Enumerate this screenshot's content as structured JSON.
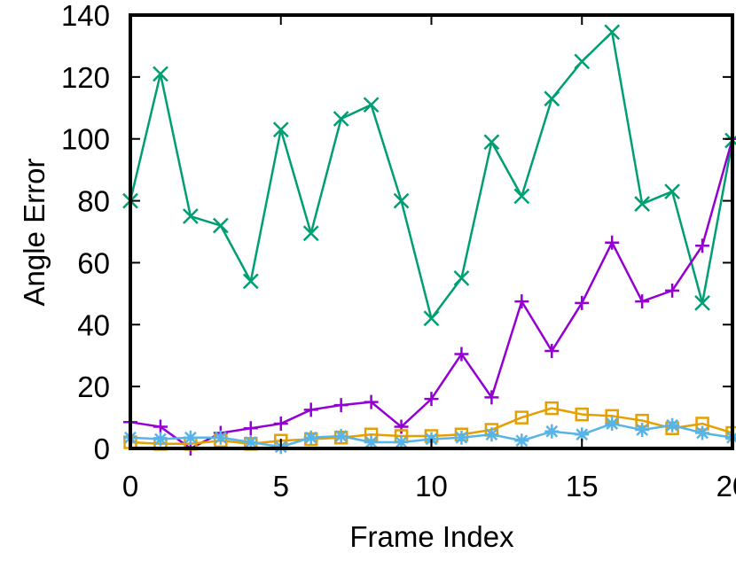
{
  "chart_data": {
    "type": "line",
    "title": "",
    "xlabel": "Frame Index",
    "ylabel": "Angle Error",
    "xlim": [
      0,
      20
    ],
    "ylim": [
      0,
      140
    ],
    "xticks": [
      0,
      5,
      10,
      15,
      20
    ],
    "yticks": [
      0,
      20,
      40,
      60,
      80,
      100,
      120,
      140
    ],
    "grid": false,
    "legend": "none",
    "x": [
      0,
      1,
      2,
      3,
      4,
      5,
      6,
      7,
      8,
      9,
      10,
      11,
      12,
      13,
      14,
      15,
      16,
      17,
      18,
      19,
      20
    ],
    "series": [
      {
        "color": "#009e73",
        "marker": "x",
        "values": [
          80,
          121,
          75,
          72,
          54,
          103,
          69.5,
          106.5,
          111,
          80,
          42,
          55,
          99,
          81.5,
          113,
          125,
          134.5,
          79,
          83,
          47,
          99.5
        ]
      },
      {
        "color": "#9400d3",
        "marker": "plus",
        "values": [
          8.5,
          7,
          0,
          5,
          6.5,
          8,
          12.5,
          14,
          15,
          7,
          16,
          30.5,
          16.5,
          47.5,
          31.5,
          47,
          66.5,
          47.5,
          51,
          65.5,
          100
        ]
      },
      {
        "color": "#e69f00",
        "marker": "square",
        "values": [
          2,
          1.5,
          1.5,
          2.5,
          1.5,
          2.5,
          3,
          3.5,
          4.5,
          4,
          4,
          4.5,
          6,
          10,
          13,
          11,
          10.5,
          9,
          6.5,
          8,
          5
        ]
      },
      {
        "color": "#56b4e9",
        "marker": "asterisk",
        "values": [
          3.5,
          3,
          3.5,
          3.5,
          2,
          0.5,
          3.5,
          4,
          2,
          2,
          3,
          3.5,
          4.5,
          2.5,
          5.5,
          4.5,
          8,
          6,
          7.5,
          5,
          3.5
        ]
      }
    ]
  }
}
